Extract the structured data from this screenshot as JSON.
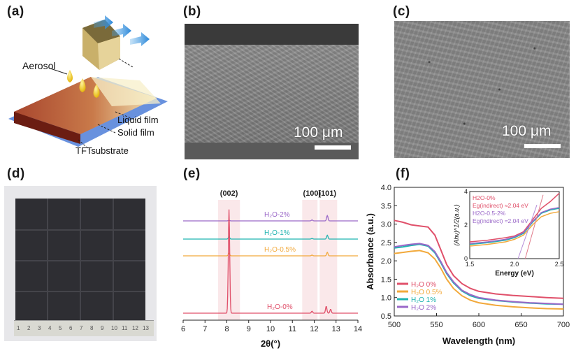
{
  "panel_labels": {
    "a": "(a)",
    "b": "(b)",
    "c": "(c)",
    "d": "(d)",
    "e": "(e)",
    "f": "(f)"
  },
  "schematic": {
    "aerosol": "Aerosol",
    "liquid_film": "Liquid film",
    "solid_film": "Solid film",
    "substrate": "TFTsubstrate"
  },
  "sem_b": {
    "scale": "100 μm"
  },
  "sem_c": {
    "scale": "100 μm"
  },
  "photo_d": {
    "ruler_numbers": [
      "1",
      "2",
      "3",
      "4",
      "5",
      "6",
      "7",
      "8",
      "9",
      "10",
      "11",
      "12",
      "13"
    ]
  },
  "colors": {
    "h2o_0": "#e0506a",
    "h2o_05": "#f2a93b",
    "h2o_1": "#1fb3b0",
    "h2o_2": "#9a68c8"
  },
  "chart_data": [
    {
      "type": "line",
      "panel": "e",
      "xlabel": "2θ(°)",
      "ylabel": "",
      "xlim": [
        6,
        14
      ],
      "x_ticks": [
        "6",
        "7",
        "8",
        "9",
        "10",
        "11",
        "12",
        "13",
        "14"
      ],
      "peak_labels": [
        "(002)",
        "(100)",
        "(101)"
      ],
      "peak_positions": [
        8.1,
        11.9,
        12.6
      ],
      "series": [
        {
          "name": "H₂O-2%",
          "baseline": 3,
          "peaks": [
            [
              8.1,
              0.1
            ],
            [
              11.9,
              0.15
            ],
            [
              12.6,
              0.85
            ]
          ]
        },
        {
          "name": "H₂O-1%",
          "baseline": 2,
          "peaks": [
            [
              8.1,
              0.35
            ],
            [
              11.9,
              0.1
            ],
            [
              12.6,
              0.6
            ]
          ]
        },
        {
          "name": "H₂O-0.5%",
          "baseline": 1,
          "peaks": [
            [
              8.1,
              0.4
            ],
            [
              11.9,
              0.12
            ],
            [
              12.6,
              0.55
            ]
          ]
        },
        {
          "name": "H₂O-0%",
          "baseline": 0,
          "peaks": [
            [
              8.1,
              5.3
            ],
            [
              11.9,
              0.1
            ],
            [
              12.55,
              0.35
            ],
            [
              12.75,
              0.2
            ]
          ]
        }
      ]
    },
    {
      "type": "line",
      "panel": "f",
      "xlabel": "Wavelength (nm)",
      "ylabel": "Absorbance (a.u.)",
      "xlim": [
        500,
        700
      ],
      "ylim": [
        0.5,
        4.0
      ],
      "x_ticks": [
        "500",
        "550",
        "600",
        "650",
        "700"
      ],
      "y_ticks": [
        "0.5",
        "1.0",
        "1.5",
        "2.0",
        "2.5",
        "3.0",
        "3.5",
        "4.0"
      ],
      "legend": [
        "H₂O 0%",
        "H₂O 0.5%",
        "H₂O 1%",
        "H₂O 2%"
      ],
      "series": [
        {
          "name": "H₂O 0%",
          "x": [
            500,
            510,
            520,
            530,
            540,
            548,
            555,
            562,
            570,
            580,
            590,
            600,
            620,
            640,
            660,
            680,
            700
          ],
          "y": [
            3.1,
            3.05,
            2.98,
            2.95,
            2.92,
            2.7,
            2.3,
            1.9,
            1.6,
            1.38,
            1.25,
            1.17,
            1.1,
            1.06,
            1.03,
            1.0,
            0.98
          ]
        },
        {
          "name": "H₂O 0.5%",
          "x": [
            500,
            510,
            520,
            530,
            540,
            548,
            555,
            562,
            570,
            580,
            590,
            600,
            620,
            640,
            660,
            680,
            700
          ],
          "y": [
            2.2,
            2.23,
            2.26,
            2.28,
            2.22,
            2.05,
            1.8,
            1.5,
            1.25,
            1.05,
            0.93,
            0.86,
            0.79,
            0.75,
            0.72,
            0.7,
            0.69
          ]
        },
        {
          "name": "H₂O 1%",
          "x": [
            500,
            510,
            520,
            530,
            540,
            548,
            555,
            562,
            570,
            580,
            590,
            600,
            620,
            640,
            660,
            680,
            700
          ],
          "y": [
            2.35,
            2.38,
            2.42,
            2.45,
            2.4,
            2.22,
            1.95,
            1.65,
            1.4,
            1.18,
            1.05,
            0.98,
            0.92,
            0.88,
            0.85,
            0.83,
            0.82
          ]
        },
        {
          "name": "H₂O 2%",
          "x": [
            500,
            510,
            520,
            530,
            540,
            548,
            555,
            562,
            570,
            580,
            590,
            600,
            620,
            640,
            660,
            680,
            700
          ],
          "y": [
            2.38,
            2.42,
            2.45,
            2.47,
            2.42,
            2.25,
            1.98,
            1.68,
            1.43,
            1.2,
            1.08,
            1.0,
            0.93,
            0.89,
            0.86,
            0.84,
            0.82
          ]
        }
      ],
      "inset": {
        "type": "line",
        "xlabel": "Energy (eV)",
        "ylabel": "(Ahv)^1/2(a.u.)",
        "xlim": [
          1.5,
          2.5
        ],
        "ylim": [
          0,
          4
        ],
        "x_ticks": [
          "1.5",
          "2.0",
          "2.5"
        ],
        "y_ticks": [
          "0",
          "2",
          "4"
        ],
        "annotations": [
          {
            "text": "H2O-0%",
            "color": "#e0506a"
          },
          {
            "text": "Eg(indirect) ≈2.04 eV",
            "color": "#e0506a"
          },
          {
            "text": "H2O-0.5-2%",
            "color": "#9a68c8"
          },
          {
            "text": "Eg(indirect) ≈2.04 eV",
            "color": "#9a68c8"
          }
        ],
        "series": [
          {
            "name": "H2O-0%",
            "x": [
              1.5,
              1.7,
              1.9,
              2.0,
              2.1,
              2.2,
              2.3,
              2.4,
              2.5
            ],
            "y": [
              1.0,
              1.1,
              1.25,
              1.35,
              1.6,
              2.3,
              3.0,
              3.4,
              3.9
            ]
          },
          {
            "name": "H2O 0.5%",
            "x": [
              1.5,
              1.7,
              1.9,
              2.0,
              2.1,
              2.2,
              2.3,
              2.4,
              2.5
            ],
            "y": [
              0.75,
              0.85,
              1.0,
              1.15,
              1.4,
              2.0,
              2.5,
              2.7,
              2.8
            ]
          },
          {
            "name": "H2O 1%",
            "x": [
              1.5,
              1.7,
              1.9,
              2.0,
              2.1,
              2.2,
              2.3,
              2.4,
              2.5
            ],
            "y": [
              0.85,
              0.95,
              1.1,
              1.25,
              1.5,
              2.15,
              2.7,
              2.9,
              3.0
            ]
          },
          {
            "name": "H2O 2%",
            "x": [
              1.5,
              1.7,
              1.9,
              2.0,
              2.1,
              2.2,
              2.3,
              2.4,
              2.5
            ],
            "y": [
              0.9,
              1.0,
              1.15,
              1.3,
              1.55,
              2.2,
              2.75,
              2.95,
              3.05
            ]
          }
        ]
      }
    }
  ]
}
